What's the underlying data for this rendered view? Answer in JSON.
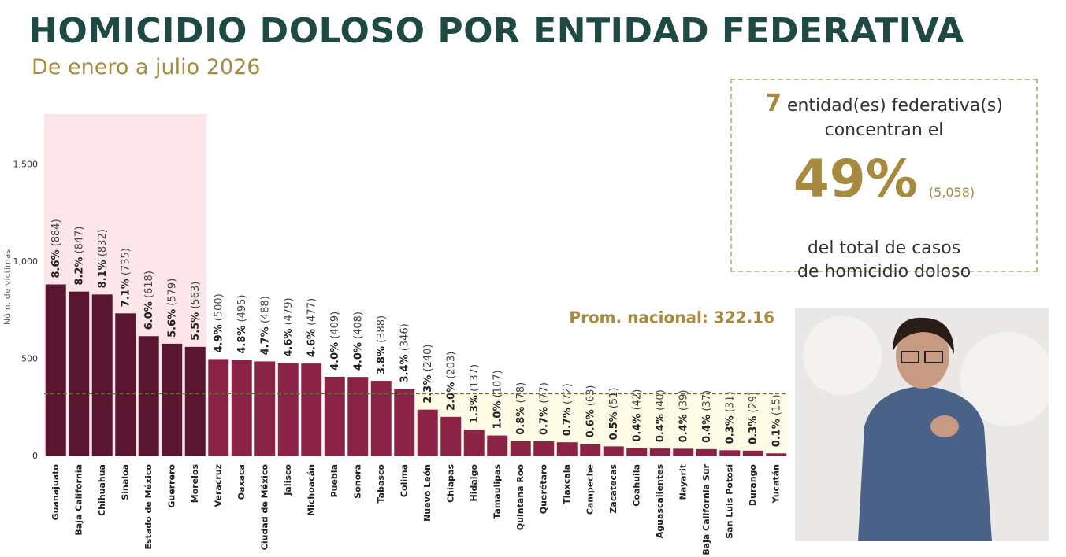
{
  "chart_data": {
    "type": "bar",
    "title": "HOMICIDIO DOLOSO POR ENTIDAD FEDERATIVA",
    "subtitle": "De enero a julio 2026",
    "y_label": "Núm. de víctimas",
    "categories": [
      "Guanajuato",
      "Baja California",
      "Chihuahua",
      "Sinaloa",
      "Estado de México",
      "Guerrero",
      "Morelos",
      "Veracruz",
      "Oaxaca",
      "Ciudad de México",
      "Jalisco",
      "Michoacán",
      "Puebla",
      "Sonora",
      "Tabasco",
      "Colima",
      "Nuevo León",
      "Chiapas",
      "Hidalgo",
      "Tamaulipas",
      "Quintana Roo",
      "Querétaro",
      "Tlaxcala",
      "Campeche",
      "Zacatecas",
      "Coahuila",
      "Aguascalientes",
      "Nayarit",
      "Baja California Sur",
      "San Luis Potosí",
      "Durango",
      "Yucatán"
    ],
    "values": [
      884,
      847,
      832,
      735,
      618,
      579,
      563,
      500,
      495,
      488,
      479,
      477,
      409,
      408,
      388,
      346,
      240,
      203,
      137,
      107,
      78,
      77,
      72,
      63,
      51,
      42,
      40,
      39,
      37,
      31,
      29,
      15
    ],
    "value_labels": [
      "(884)",
      "(847)",
      "(832)",
      "(735)",
      "(618)",
      "(579)",
      "(563)",
      "(500)",
      "(495)",
      "(488)",
      "(479)",
      "(477)",
      "(409)",
      "(408)",
      "(388)",
      "(346)",
      "(240)",
      "(203)",
      "(137)",
      "(107)",
      "(78)",
      "(77)",
      "(72)",
      "(63)",
      "(51)",
      "(42)",
      "(40)",
      "(39)",
      "(37)",
      "(31)",
      "(29)",
      "(15)"
    ],
    "share_labels": [
      "8.6%",
      "8.2%",
      "8.1%",
      "7.1%",
      "6.0%",
      "5.6%",
      "5.5%",
      "4.9%",
      "4.8%",
      "4.7%",
      "4.6%",
      "4.6%",
      "4.0%",
      "4.0%",
      "3.8%",
      "3.4%",
      "2.3%",
      "2.0%",
      "1.3%",
      "1.0%",
      "0.8%",
      "0.7%",
      "0.7%",
      "0.6%",
      "0.5%",
      "0.4%",
      "0.4%",
      "0.4%",
      "0.4%",
      "0.3%",
      "0.3%",
      "0.1%"
    ],
    "color": "#8b2346",
    "highlight_color": "#5a1630",
    "ylim": [
      0,
      1760
    ],
    "yticks": [
      0,
      500,
      {
        "value": 1000,
        "label": "1,000"
      },
      {
        "value": 1500,
        "label": "1,500"
      }
    ],
    "average": {
      "value": 322.16,
      "label": "Prom. nacional: 322.16"
    },
    "summary": {
      "count": 7,
      "line1": "entidad(es) federativa(s)",
      "line2": "concentran el",
      "share": "49%",
      "total": "(5,058)",
      "line3": "del total de casos",
      "line4": "de homicidio doloso"
    }
  }
}
